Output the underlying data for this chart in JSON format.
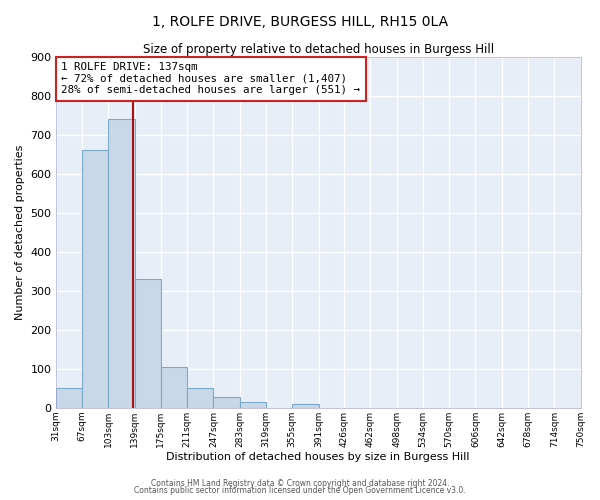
{
  "title": "1, ROLFE DRIVE, BURGESS HILL, RH15 0LA",
  "subtitle": "Size of property relative to detached houses in Burgess Hill",
  "xlabel": "Distribution of detached houses by size in Burgess Hill",
  "ylabel": "Number of detached properties",
  "bar_color": "#c8d8e8",
  "bar_edge_color": "#7aaac8",
  "bg_color": "#e8eef8",
  "grid_color": "#ffffff",
  "bin_edges": [
    31,
    67,
    103,
    139,
    175,
    211,
    247,
    283,
    319,
    355,
    391,
    426,
    462,
    498,
    534,
    570,
    606,
    642,
    678,
    714,
    750
  ],
  "bar_heights": [
    50,
    660,
    740,
    330,
    105,
    50,
    27,
    14,
    0,
    10,
    0,
    0,
    0,
    0,
    0,
    0,
    0,
    0,
    0,
    0
  ],
  "property_size": 137,
  "vline_color": "#aa1111",
  "annotation_text": "1 ROLFE DRIVE: 137sqm\n← 72% of detached houses are smaller (1,407)\n28% of semi-detached houses are larger (551) →",
  "annotation_box_color": "white",
  "annotation_box_edge": "#cc2222",
  "ylim": [
    0,
    900
  ],
  "yticks": [
    0,
    100,
    200,
    300,
    400,
    500,
    600,
    700,
    800,
    900
  ],
  "tick_labels": [
    "31sqm",
    "67sqm",
    "103sqm",
    "139sqm",
    "175sqm",
    "211sqm",
    "247sqm",
    "283sqm",
    "319sqm",
    "355sqm",
    "391sqm",
    "426sqm",
    "462sqm",
    "498sqm",
    "534sqm",
    "570sqm",
    "606sqm",
    "642sqm",
    "678sqm",
    "714sqm",
    "750sqm"
  ],
  "footer_line1": "Contains HM Land Registry data © Crown copyright and database right 2024.",
  "footer_line2": "Contains public sector information licensed under the Open Government Licence v3.0."
}
